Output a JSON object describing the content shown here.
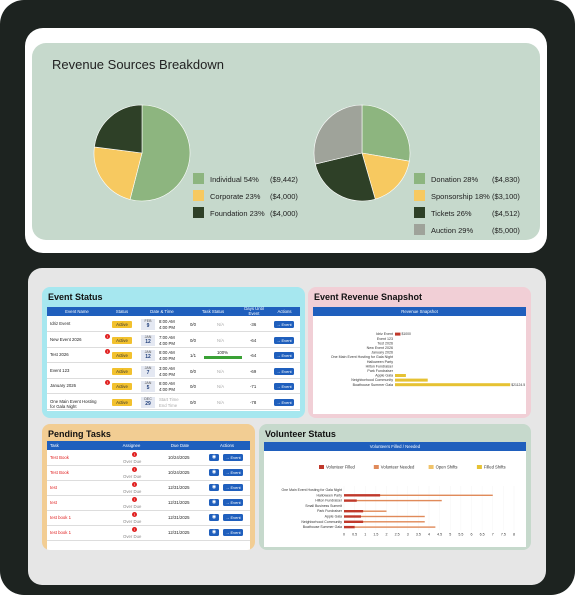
{
  "revenue": {
    "title": "Revenue Sources Breakdown",
    "pie1": [
      {
        "label": "Individual 54%",
        "amount": "($9,442)",
        "value": 54,
        "color": "#8db57f"
      },
      {
        "label": "Corporate 23%",
        "amount": "($4,000)",
        "value": 23,
        "color": "#f7c960"
      },
      {
        "label": "Foundation 23%",
        "amount": "($4,000)",
        "value": 23,
        "color": "#2e4027"
      }
    ],
    "pie2": [
      {
        "label": "Donation 28%",
        "amount": "($4,830)",
        "value": 28,
        "color": "#8db57f"
      },
      {
        "label": "Sponsorship 18%",
        "amount": "($3,100)",
        "value": 18,
        "color": "#f7c960"
      },
      {
        "label": "Tickets 26%",
        "amount": "($4,512)",
        "value": 26,
        "color": "#2e4027"
      },
      {
        "label": "Auction 29%",
        "amount": "($5,000)",
        "value": 29,
        "color": "#9fa39a"
      }
    ]
  },
  "event_status": {
    "title": "Event Status",
    "headers": [
      "Event Name",
      "Status",
      "Date & Time",
      "Task Status",
      "Days Until Event",
      "Actions"
    ],
    "rows": [
      {
        "name": "Idriz Event",
        "status": "Active",
        "mon": "FEB",
        "day": "9",
        "t1": "8:00 AM",
        "t2": "4:00 PM",
        "tasks": "0/0",
        "na": "N/A",
        "days": "-36",
        "action": "→ Event",
        "alert": false,
        "progress": null
      },
      {
        "name": "New Event 2026",
        "status": "Active",
        "mon": "JAN",
        "day": "12",
        "t1": "7:00 AM",
        "t2": "4:00 PM",
        "tasks": "0/0",
        "na": "N/A",
        "days": "-64",
        "action": "→ Event",
        "alert": true,
        "progress": null
      },
      {
        "name": "Test 2026",
        "status": "Active",
        "mon": "JAN",
        "day": "12",
        "t1": "8:00 AM",
        "t2": "4:00 PM",
        "tasks": "1/1",
        "na": "100%",
        "days": "-64",
        "action": "→ Event",
        "alert": true,
        "progress": 1.0
      },
      {
        "name": "Event 123",
        "status": "Active",
        "mon": "JAN",
        "day": "7",
        "t1": "3:00 AM",
        "t2": "4:00 PM",
        "tasks": "0/0",
        "na": "N/A",
        "days": "-69",
        "action": "→ Event",
        "alert": false,
        "progress": null
      },
      {
        "name": "January 2026",
        "status": "Active",
        "mon": "JAN",
        "day": "5",
        "t1": "8:00 AM",
        "t2": "4:00 PM",
        "tasks": "0/0",
        "na": "N/A",
        "days": "-71",
        "action": "→ Event",
        "alert": true,
        "progress": null
      },
      {
        "name": "One Main Event Hosting for Gala Night",
        "status": "Active",
        "mon": "DEC",
        "day": "29",
        "t1": "Start Time",
        "t2": "End Time",
        "tasks": "0/0",
        "na": "N/A",
        "days": "-78",
        "action": "→ Event",
        "alert": false,
        "progress": null
      }
    ]
  },
  "snapshot": {
    "title": "Event Revenue Snapshot",
    "header": "Revenue Snapshot",
    "chart_data": {
      "type": "bar",
      "categories": [
        "Idriz Event",
        "Event 123",
        "Test 2026",
        "New Event 2026",
        "January 2026",
        "One Main Event Hosting for Gala Night",
        "Halloween Party",
        "Hilton Fundraiser",
        "Park Fundraiser",
        "Apple Gala",
        "Neighborhood Community",
        "Boathouse Summer Gala"
      ],
      "value_labels": [
        "$1000",
        "",
        "",
        "",
        "",
        "",
        "",
        "",
        "",
        "",
        "",
        "$21124.5"
      ],
      "series": [
        {
          "values": [
            0,
            0,
            0,
            0,
            0,
            0,
            0,
            0,
            0,
            2000,
            6000,
            21124.5
          ],
          "color": "#e6c233"
        },
        {
          "values": [
            1000,
            0,
            0,
            0,
            0,
            0,
            0,
            0,
            0,
            0,
            0,
            0
          ],
          "color": "#c0392b"
        }
      ],
      "xlim": [
        0,
        22000
      ]
    }
  },
  "pending": {
    "title": "Pending Tasks",
    "headers": [
      "Task",
      "Assignee",
      "Due Date",
      "Actions"
    ],
    "overdue": "Over Due",
    "rows": [
      {
        "task": "Test Book",
        "due": "10/24/2025",
        "action": "→ Event"
      },
      {
        "task": "Test Book",
        "due": "10/24/2025",
        "action": "→ Event"
      },
      {
        "task": "test",
        "due": "12/31/2025",
        "action": "→ Event"
      },
      {
        "task": "test",
        "due": "12/31/2025",
        "action": "→ Event"
      },
      {
        "task": "test book 1",
        "due": "12/31/2025",
        "action": "→ Event"
      },
      {
        "task": "test book 1",
        "due": "12/31/2025",
        "action": "→ Event"
      }
    ]
  },
  "volunteer": {
    "title": "Volunteer Status",
    "header": "Volunteers Filled / Needed",
    "chart_data": {
      "type": "bar",
      "legend": [
        "Volunteer Filled",
        "Volunteer Needed",
        "Open Shifts",
        "Filled Shifts"
      ],
      "colors": [
        "#c0392b",
        "#e08a5a",
        "#f0c36a",
        "#e6c233"
      ],
      "categories": [
        "One Main Event Hosting for Gala Night",
        "Halloween Party",
        "Hilton Fundraiser",
        "Small Business Summit",
        "Park Fundraiser",
        "Apple Gala",
        "Neighborhood Community",
        "Boathouse Summer Gala"
      ],
      "needed": [
        0,
        7,
        4.6,
        0,
        2,
        3.8,
        3.8,
        4.3
      ],
      "filled": [
        0,
        1.7,
        0.6,
        0,
        0.9,
        0.8,
        0.9,
        0.5
      ],
      "ticks": [
        "0",
        "0.5",
        "1",
        "1.5",
        "2",
        "2.5",
        "3",
        "3.5",
        "4",
        "4.5",
        "5",
        "5.5",
        "6",
        "6.5",
        "7",
        "7.5",
        "8"
      ],
      "xlim": [
        0,
        8
      ]
    }
  }
}
